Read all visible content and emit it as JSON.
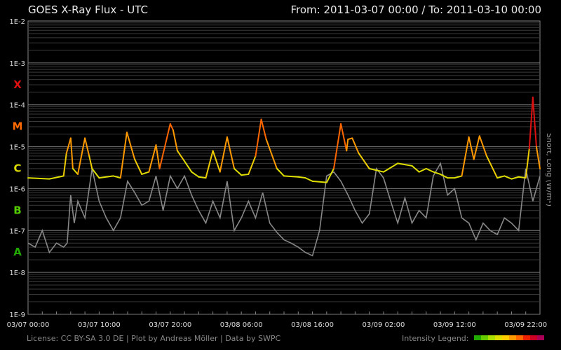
{
  "header": {
    "title": "GOES X-Ray Flux - UTC",
    "range": "From: 2011-03-07 00:00  /  To: 2011-03-10 00:00"
  },
  "footer": {
    "credits": "License: CC BY-SA 3.0 DE | Plot by Andreas Möller | Data by SWPC",
    "legend_label": "Intensity Legend:",
    "legend_colors": [
      "#22aa00",
      "#66cc00",
      "#aadd00",
      "#dddd00",
      "#ffcc00",
      "#ff9900",
      "#ff6600",
      "#ee2200",
      "#cc0022",
      "#aa0055"
    ]
  },
  "chart_data": {
    "type": "line",
    "title": "GOES X-Ray Flux - UTC",
    "ylabel": "Short, Long (W/m²)",
    "yscale": "log",
    "ylim": [
      1e-09,
      0.01
    ],
    "y_ticks": [
      "1E-2",
      "1E-3",
      "1E-4",
      "1E-5",
      "1E-6",
      "1E-7",
      "1E-8",
      "1E-9"
    ],
    "x_ticks": [
      "03/07 00:00",
      "03/07 10:00",
      "03/07 20:00",
      "03/08 06:00",
      "03/08 16:00",
      "03/09 02:00",
      "03/09 12:00",
      "03/09 22:00"
    ],
    "xlim_hours": [
      0,
      72
    ],
    "flare_classes": [
      {
        "label": "X",
        "color": "#e01010"
      },
      {
        "label": "M",
        "color": "#ff6a00"
      },
      {
        "label": "C",
        "color": "#dddd00"
      },
      {
        "label": "B",
        "color": "#55cc00"
      },
      {
        "label": "A",
        "color": "#22aa00"
      }
    ],
    "series": [
      {
        "name": "Long",
        "color_scale": "intensity",
        "hours": [
          0,
          3,
          5,
          5.4,
          6,
          6.3,
          7,
          8,
          8.6,
          9,
          10,
          12,
          13,
          13.9,
          15,
          16,
          17,
          18,
          18.5,
          20,
          20.4,
          21,
          22,
          23,
          24,
          25,
          26,
          27,
          28,
          29,
          30,
          31,
          32,
          32.8,
          33.5,
          35,
          36,
          38,
          39,
          40,
          42,
          43,
          44,
          44.8,
          45,
          45.6,
          46.5,
          48,
          50,
          52,
          54,
          55,
          56,
          57,
          58,
          59,
          60,
          61,
          62,
          62.7,
          63.5,
          64.5,
          66,
          67,
          68,
          69,
          70,
          70.5,
          71,
          71.5,
          72
        ],
        "values": [
          1.8e-06,
          1.7e-06,
          2e-06,
          7e-06,
          1.6e-05,
          3e-06,
          2.2e-06,
          1.6e-05,
          6e-06,
          3e-06,
          1.8e-06,
          2e-06,
          1.8e-06,
          2.2e-05,
          5e-06,
          2.2e-06,
          2.5e-06,
          1.1e-05,
          3e-06,
          3.5e-05,
          2.5e-05,
          8e-06,
          4.5e-06,
          2.5e-06,
          1.9e-06,
          1.8e-06,
          8e-06,
          2.5e-06,
          1.7e-05,
          3e-06,
          2.1e-06,
          2.2e-06,
          6e-06,
          4.5e-05,
          1.5e-05,
          3e-06,
          2e-06,
          1.9e-06,
          1.8e-06,
          1.5e-06,
          1.4e-06,
          3e-06,
          3.5e-05,
          8e-06,
          1.5e-05,
          1.6e-05,
          7e-06,
          3e-06,
          2.5e-06,
          4e-06,
          3.5e-06,
          2.5e-06,
          3e-06,
          2.5e-06,
          2.2e-06,
          1.8e-06,
          1.8e-06,
          2e-06,
          1.7e-05,
          5e-06,
          1.8e-05,
          6e-06,
          1.8e-06,
          2e-06,
          1.7e-06,
          1.9e-06,
          1.8e-06,
          9e-06,
          0.00015,
          1e-05,
          3e-06
        ]
      },
      {
        "name": "Short",
        "color": "#888888",
        "hours": [
          0,
          1,
          2,
          3,
          4,
          5,
          5.5,
          6,
          6.5,
          7,
          8,
          9,
          10,
          11,
          12,
          13,
          14,
          15,
          16,
          17,
          18,
          19,
          20,
          21,
          22,
          23,
          24,
          25,
          26,
          27,
          28,
          29,
          30,
          31,
          32,
          33,
          34,
          35,
          36,
          37,
          38,
          39,
          40,
          41,
          42,
          43,
          44,
          45,
          46,
          47,
          48,
          49,
          50,
          51,
          52,
          53,
          54,
          55,
          56,
          57,
          58,
          59,
          60,
          61,
          62,
          63,
          64,
          65,
          66,
          67,
          68,
          69,
          70,
          71,
          72
        ],
        "values": [
          5e-08,
          4e-08,
          1e-07,
          3e-08,
          5e-08,
          4e-08,
          5e-08,
          7e-07,
          1.5e-07,
          5e-07,
          2e-07,
          3e-06,
          5e-07,
          2e-07,
          1e-07,
          2e-07,
          1.5e-06,
          8e-07,
          4e-07,
          5e-07,
          2e-06,
          3e-07,
          2e-06,
          1e-06,
          2e-06,
          7e-07,
          3e-07,
          1.5e-07,
          5e-07,
          2e-07,
          1.5e-06,
          1e-07,
          2e-07,
          5e-07,
          2e-07,
          8e-07,
          1.5e-07,
          9e-08,
          6e-08,
          5e-08,
          4e-08,
          3e-08,
          2.5e-08,
          1e-07,
          2e-06,
          2.5e-06,
          1.5e-06,
          7e-07,
          3e-07,
          1.5e-07,
          2.5e-07,
          3e-06,
          1.8e-06,
          5e-07,
          1.5e-07,
          6e-07,
          1.5e-07,
          3e-07,
          2e-07,
          2e-06,
          4e-06,
          7e-07,
          1e-06,
          2e-07,
          1.5e-07,
          6e-08,
          1.5e-07,
          1e-07,
          8e-08,
          2e-07,
          1.5e-07,
          1e-07,
          3e-06,
          5e-07,
          2e-06
        ]
      }
    ]
  }
}
